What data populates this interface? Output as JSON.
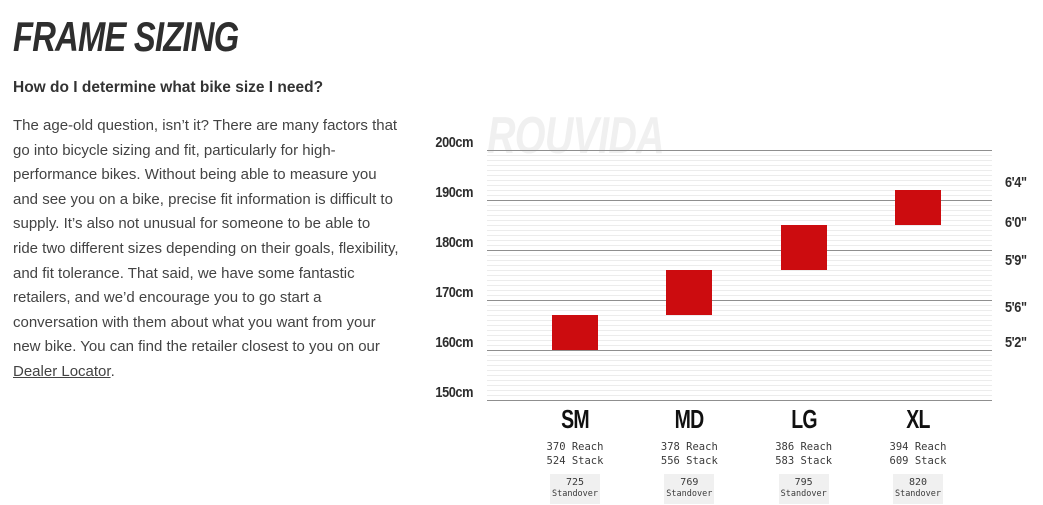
{
  "header": {
    "title": "FRAME SIZING",
    "subtitle": "How do I determine what bike size I need?"
  },
  "intro": {
    "text_before_link": "The age-old question, isn’t it? There are many factors that go into bicycle sizing and fit, particularly for high-performance bikes. Without being able to measure you and see you on a bike, precise fit information is difficult to supply. It’s also not unusual for someone to be able to ride two different sizes depending on their goals, flexibility, and fit tolerance. That said, we have some fantastic retailers, and we’d encourage you to go start a conversation with them about what you want from your new bike. You can find the retailer closest to you on our ",
    "link_label": "Dealer Locator",
    "text_after_link": "."
  },
  "chart_data": {
    "type": "bar",
    "watermark": "ROUVIDA",
    "y_axis_left_unit": "cm",
    "ylim_cm": [
      150,
      200
    ],
    "y_axis_cm_ticks": [
      200,
      190,
      180,
      170,
      160,
      150
    ],
    "y_axis_height_markers": [
      {
        "label": "6'4\"",
        "axis_cm": 193.6
      },
      {
        "label": "6'0\"",
        "axis_cm": 185.6
      },
      {
        "label": "5'9\"",
        "axis_cm": 178.0
      },
      {
        "label": "5'6\"",
        "axis_cm": 168.6
      },
      {
        "label": "5'2\"",
        "axis_cm": 161.6
      }
    ],
    "bar_color": "#cc0c0f",
    "labels": {
      "reach": "Reach",
      "stack": "Stack",
      "standover": "Standover"
    },
    "sizes": [
      {
        "label": "SM",
        "rider_height_cm": [
          160,
          167
        ],
        "reach": 370,
        "stack": 524,
        "standover": 725
      },
      {
        "label": "MD",
        "rider_height_cm": [
          167,
          176
        ],
        "reach": 378,
        "stack": 556,
        "standover": 769
      },
      {
        "label": "LG",
        "rider_height_cm": [
          176,
          185
        ],
        "reach": 386,
        "stack": 583,
        "standover": 795
      },
      {
        "label": "XL",
        "rider_height_cm": [
          185,
          192
        ],
        "reach": 394,
        "stack": 609,
        "standover": 820
      }
    ]
  }
}
